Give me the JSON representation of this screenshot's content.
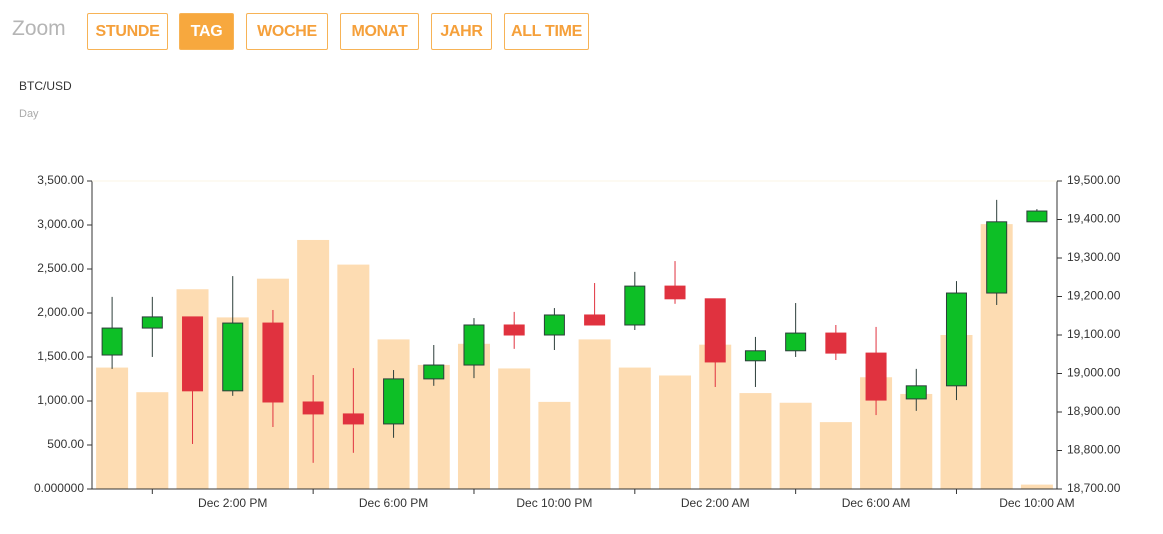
{
  "toolbar": {
    "label": "Zoom",
    "buttons": [
      "STUNDE",
      "TAG",
      "WOCHE",
      "MONAT",
      "JAHR",
      "ALL TIME"
    ],
    "active": 1
  },
  "chart_data": {
    "type": "candlestick",
    "title": "BTC/USD",
    "subtitle": "Day",
    "categories": [
      null,
      null,
      null,
      "Dec 2:00 PM",
      null,
      null,
      null,
      "Dec 6:00 PM",
      null,
      null,
      null,
      "Dec 10:00 PM",
      null,
      null,
      null,
      "Dec 2:00 AM",
      null,
      null,
      null,
      "Dec 6:00 AM",
      null,
      null,
      null,
      "Dec 10:00 AM"
    ],
    "open": [
      19048,
      19118,
      19147,
      18955,
      19131,
      18926,
      18895,
      18869,
      18986,
      19022,
      19126,
      19100,
      19152,
      19126,
      19227,
      19194,
      19033,
      19059,
      19105,
      19053,
      18934,
      18968,
      19209,
      19394
    ],
    "high": [
      19199,
      19199,
      19147,
      19253,
      19165,
      18996,
      19014,
      19009,
      19074,
      19144,
      19160,
      19170,
      19235,
      19264,
      19292,
      19194,
      19095,
      19183,
      19126,
      19121,
      19012,
      19240,
      19451,
      19427
    ],
    "low": [
      19012,
      19043,
      18817,
      18942,
      18861,
      18768,
      18794,
      18833,
      18968,
      18988,
      19064,
      19061,
      19126,
      19113,
      19181,
      18965,
      18965,
      19043,
      19035,
      18892,
      18903,
      18931,
      19178,
      19394
    ],
    "close": [
      19118,
      19147,
      18955,
      19131,
      18926,
      18895,
      18869,
      18986,
      19022,
      19126,
      19100,
      19152,
      19126,
      19227,
      19194,
      19030,
      19059,
      19105,
      19053,
      18931,
      18968,
      19209,
      19394,
      19422
    ],
    "volume": [
      1380,
      1100,
      2270,
      1950,
      2390,
      2830,
      2550,
      1700,
      1410,
      1650,
      1370,
      990,
      1700,
      1380,
      1290,
      1640,
      1090,
      980,
      760,
      1270,
      1080,
      1750,
      3010,
      50
    ],
    "up_color": "#0dbf26",
    "down_color": "#e0323f",
    "volume_color": "#fddcb2",
    "ylim": [
      0,
      3500
    ],
    "yticks": [
      {
        "value": 0,
        "label": "0.000000"
      },
      {
        "value": 500,
        "label": "500.00"
      },
      {
        "value": 1000,
        "label": "1,000.00"
      },
      {
        "value": 1500,
        "label": "1,500.00"
      },
      {
        "value": 2000,
        "label": "2,000.00"
      },
      {
        "value": 2500,
        "label": "2,500.00"
      },
      {
        "value": 3000,
        "label": "3,000.00"
      },
      {
        "value": 3500,
        "label": "3,500.00"
      }
    ],
    "y2lim": [
      18700,
      19500
    ],
    "y2ticks": [
      {
        "value": 18700,
        "label": "18,700.00"
      },
      {
        "value": 18800,
        "label": "18,800.00"
      },
      {
        "value": 18900,
        "label": "18,900.00"
      },
      {
        "value": 19000,
        "label": "19,000.00"
      },
      {
        "value": 19100,
        "label": "19,100.00"
      },
      {
        "value": 19200,
        "label": "19,200.00"
      },
      {
        "value": 19300,
        "label": "19,300.00"
      },
      {
        "value": 19400,
        "label": "19,400.00"
      },
      {
        "value": 19500,
        "label": "19,500.00"
      }
    ]
  }
}
